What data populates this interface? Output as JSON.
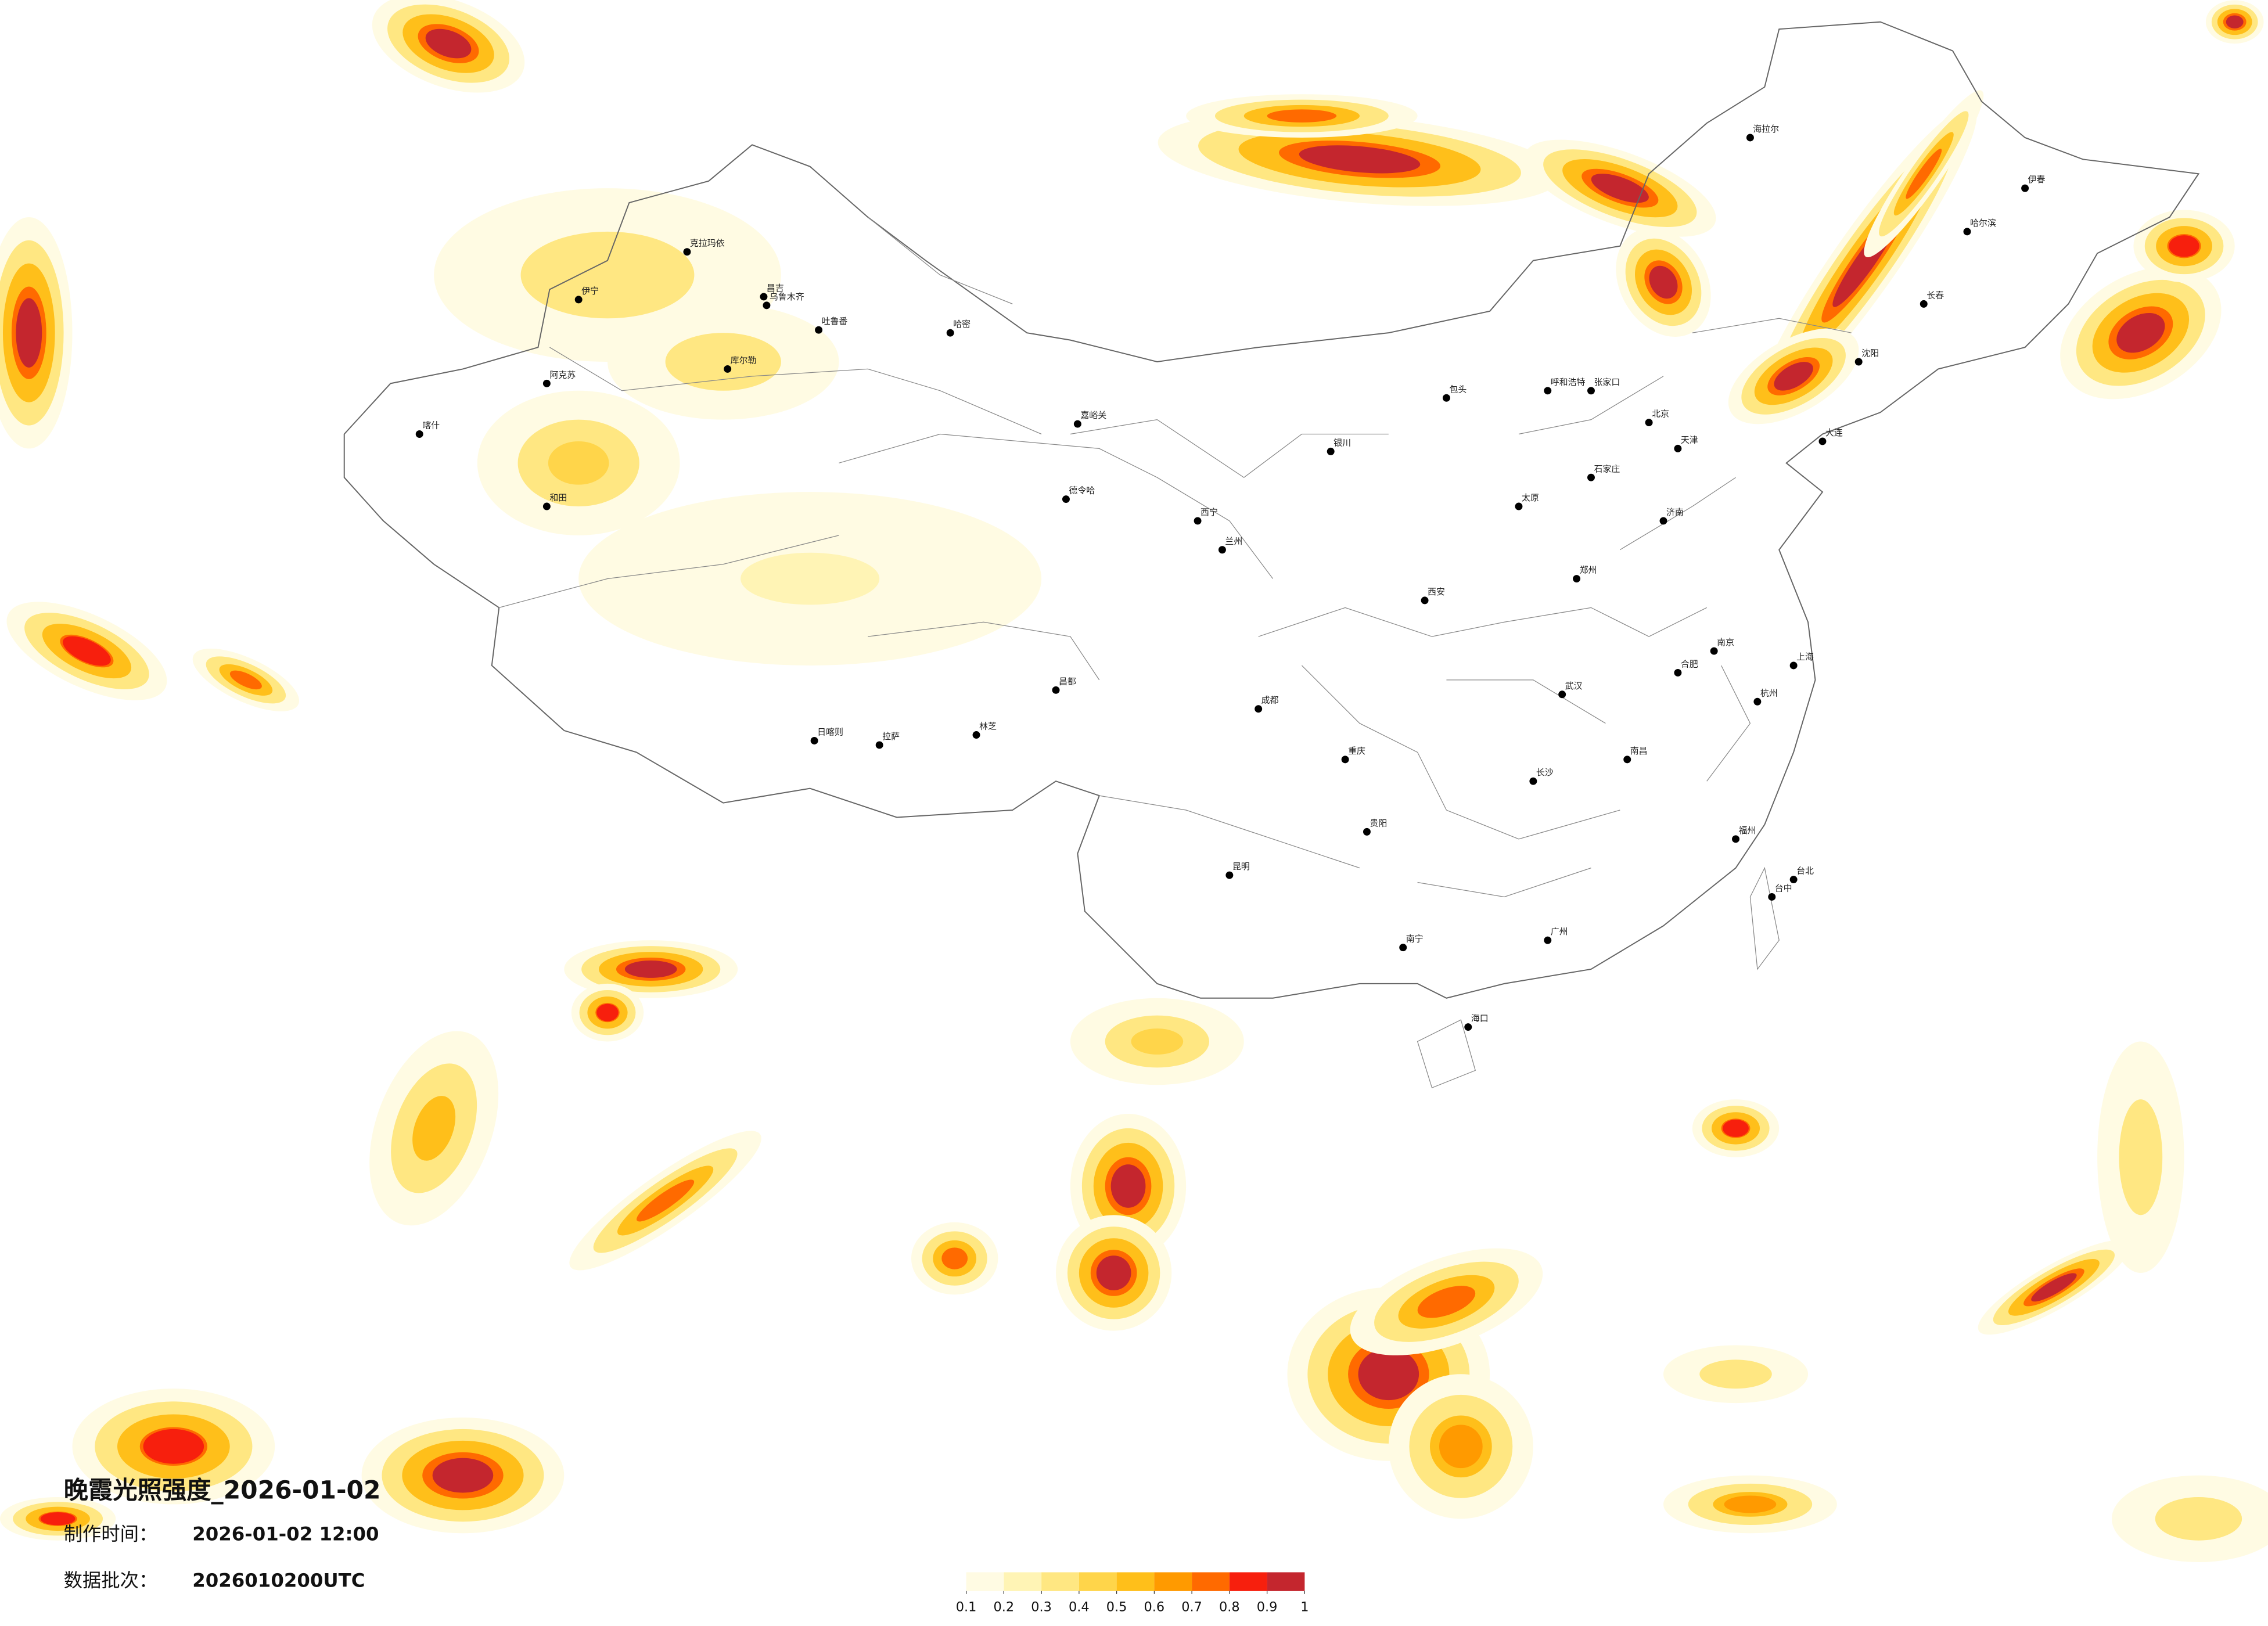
{
  "title": "晚霞光照强度_2026-01-02",
  "meta": {
    "made_label": "制作时间：",
    "made_time": "2026-01-02 12:00",
    "batch_label": "数据批次：",
    "batch": "2026010200UTC"
  },
  "legend": {
    "colors": [
      "#fffbe3",
      "#fff4b5",
      "#ffe782",
      "#ffd54a",
      "#ffbf1a",
      "#ff9a00",
      "#ff6a00",
      "#f71f0d",
      "#c4262e"
    ],
    "ticks": [
      0.1,
      0.2,
      0.3,
      0.4,
      0.5,
      0.6,
      0.7,
      0.8,
      0.9,
      1
    ]
  },
  "cities": [
    "克拉玛依",
    "昌吉",
    "乌鲁木齐",
    "吐鲁番",
    "哈密",
    "伊宁",
    "阿克苏",
    "库尔勒",
    "喀什",
    "和田",
    "德令哈",
    "嘉峪关",
    "西宁",
    "兰州",
    "银川",
    "拉萨",
    "日喀则",
    "昌都",
    "林芝",
    "呼和浩特",
    "北京",
    "天津",
    "石家庄",
    "太原",
    "西安",
    "郑州",
    "济南",
    "南京",
    "上海",
    "杭州",
    "合肥",
    "武汉",
    "长沙",
    "南昌",
    "福州",
    "广州",
    "南宁",
    "海口",
    "贵阳",
    "昆明",
    "成都",
    "重庆",
    "台北",
    "台中",
    "哈尔滨",
    "长春",
    "沈阳",
    "大连",
    "海拉尔",
    "伊春",
    "张家口",
    "包头"
  ]
}
